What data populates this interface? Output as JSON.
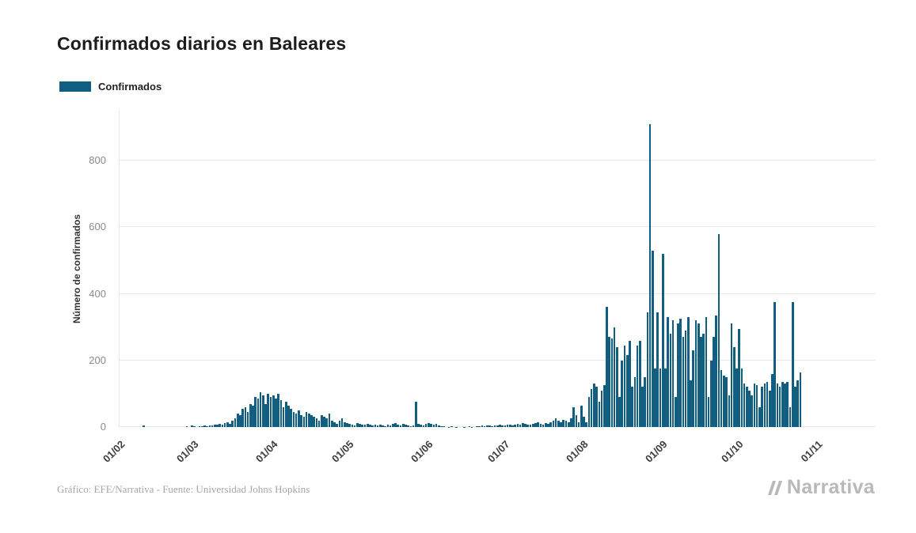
{
  "page": {
    "footer_credit": "Gráfico: EFE/Narrativa - Fuente: Universidad Johns Hopkins",
    "brand": "Narrativa"
  },
  "chart_data": {
    "type": "bar",
    "title": "Confirmados diarios en Baleares",
    "xlabel": "",
    "ylabel": "Número de confirmados",
    "ylim": [
      0,
      950
    ],
    "yticks": [
      0,
      200,
      400,
      600,
      800
    ],
    "grid": "horizontal",
    "legend_position": "top-left",
    "bar_color": "#115e80",
    "legend": [
      {
        "label": "Confirmados",
        "color": "#115e80"
      }
    ],
    "x_unit": "day",
    "x_start_label": "01/02",
    "domain_days": 297,
    "xticks": [
      {
        "label": "01/02",
        "day": 0
      },
      {
        "label": "01/03",
        "day": 29
      },
      {
        "label": "01/04",
        "day": 60
      },
      {
        "label": "01/05",
        "day": 90
      },
      {
        "label": "01/06",
        "day": 121
      },
      {
        "label": "01/07",
        "day": 151
      },
      {
        "label": "01/08",
        "day": 182
      },
      {
        "label": "01/09",
        "day": 213
      },
      {
        "label": "01/10",
        "day": 243
      },
      {
        "label": "01/11",
        "day": 274
      }
    ],
    "values": [
      0,
      0,
      0,
      0,
      0,
      0,
      0,
      0,
      0,
      5,
      0,
      0,
      0,
      0,
      0,
      0,
      0,
      0,
      0,
      0,
      0,
      0,
      0,
      0,
      0,
      0,
      3,
      0,
      4,
      2,
      0,
      3,
      2,
      4,
      3,
      5,
      4,
      8,
      6,
      10,
      8,
      12,
      15,
      10,
      18,
      25,
      40,
      35,
      55,
      60,
      45,
      70,
      65,
      90,
      85,
      105,
      95,
      70,
      100,
      90,
      95,
      85,
      100,
      80,
      60,
      75,
      65,
      55,
      45,
      40,
      50,
      35,
      30,
      45,
      40,
      35,
      30,
      25,
      20,
      35,
      30,
      25,
      40,
      20,
      15,
      10,
      20,
      25,
      15,
      12,
      10,
      8,
      5,
      12,
      10,
      8,
      6,
      10,
      8,
      5,
      6,
      4,
      8,
      5,
      3,
      6,
      4,
      10,
      12,
      8,
      5,
      10,
      8,
      4,
      3,
      5,
      75,
      10,
      8,
      5,
      10,
      12,
      10,
      8,
      10,
      4,
      3,
      2,
      0,
      1,
      2,
      0,
      1,
      0,
      0,
      1,
      0,
      2,
      1,
      0,
      3,
      2,
      4,
      3,
      5,
      4,
      3,
      5,
      4,
      6,
      5,
      4,
      6,
      8,
      5,
      7,
      10,
      8,
      12,
      10,
      8,
      6,
      10,
      12,
      15,
      10,
      8,
      12,
      10,
      15,
      20,
      25,
      18,
      15,
      22,
      20,
      15,
      25,
      60,
      35,
      15,
      65,
      30,
      15,
      90,
      115,
      130,
      120,
      75,
      110,
      125,
      360,
      270,
      265,
      300,
      240,
      90,
      200,
      245,
      215,
      260,
      120,
      150,
      245,
      260,
      120,
      150,
      345,
      910,
      530,
      175,
      345,
      175,
      520,
      175,
      330,
      280,
      320,
      90,
      310,
      325,
      270,
      290,
      330,
      140,
      230,
      320,
      310,
      270,
      280,
      330,
      90,
      200,
      270,
      335,
      580,
      170,
      155,
      150,
      95,
      310,
      240,
      175,
      295,
      175,
      130,
      120,
      110,
      95,
      130,
      125,
      60,
      120,
      130,
      135,
      110,
      160,
      375,
      130,
      120,
      135,
      130,
      135,
      60,
      375,
      120,
      140,
      165
    ]
  }
}
